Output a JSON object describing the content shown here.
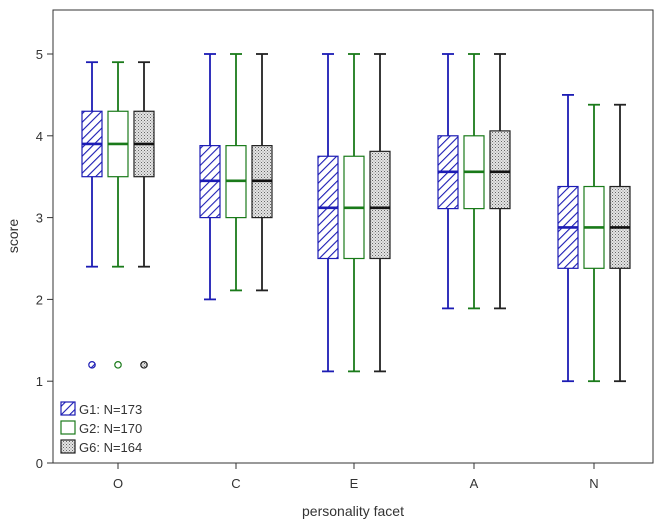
{
  "chart_data": {
    "type": "boxplot",
    "xlabel": "personality facet",
    "ylabel": "score",
    "categories": [
      "O",
      "C",
      "E",
      "A",
      "N"
    ],
    "ylim": [
      0,
      5.5
    ],
    "yticks": [
      0,
      1,
      2,
      3,
      4,
      5
    ],
    "grid": false,
    "legend_position": "bottom-left",
    "series": [
      {
        "name": "G1: N=173",
        "color": "#1c1cb4",
        "fill": "hatch",
        "boxes": [
          {
            "min": 2.4,
            "q1": 3.5,
            "median": 3.9,
            "q3": 4.3,
            "max": 4.9,
            "outliers": [
              1.2
            ]
          },
          {
            "min": 2.0,
            "q1": 3.0,
            "median": 3.45,
            "q3": 3.88,
            "max": 5.0,
            "outliers": []
          },
          {
            "min": 1.12,
            "q1": 2.5,
            "median": 3.12,
            "q3": 3.75,
            "max": 5.0,
            "outliers": []
          },
          {
            "min": 1.89,
            "q1": 3.11,
            "median": 3.56,
            "q3": 4.0,
            "max": 5.0,
            "outliers": []
          },
          {
            "min": 1.0,
            "q1": 2.38,
            "median": 2.88,
            "q3": 3.38,
            "max": 4.5,
            "outliers": []
          }
        ]
      },
      {
        "name": "G2: N=170",
        "color": "#1a7a1a",
        "fill": "white",
        "boxes": [
          {
            "min": 2.4,
            "q1": 3.5,
            "median": 3.9,
            "q3": 4.3,
            "max": 4.9,
            "outliers": [
              1.2
            ]
          },
          {
            "min": 2.11,
            "q1": 3.0,
            "median": 3.45,
            "q3": 3.88,
            "max": 5.0,
            "outliers": []
          },
          {
            "min": 1.12,
            "q1": 2.5,
            "median": 3.12,
            "q3": 3.75,
            "max": 5.0,
            "outliers": []
          },
          {
            "min": 1.89,
            "q1": 3.11,
            "median": 3.56,
            "q3": 4.0,
            "max": 5.0,
            "outliers": []
          },
          {
            "min": 1.0,
            "q1": 2.38,
            "median": 2.88,
            "q3": 3.38,
            "max": 4.38,
            "outliers": []
          }
        ]
      },
      {
        "name": "G6: N=164",
        "color": "#222222",
        "fill": "dots",
        "boxes": [
          {
            "min": 2.4,
            "q1": 3.5,
            "median": 3.9,
            "q3": 4.3,
            "max": 4.9,
            "outliers": [
              1.2
            ]
          },
          {
            "min": 2.11,
            "q1": 3.0,
            "median": 3.45,
            "q3": 3.88,
            "max": 5.0,
            "outliers": []
          },
          {
            "min": 1.12,
            "q1": 2.5,
            "median": 3.12,
            "q3": 3.81,
            "max": 5.0,
            "outliers": []
          },
          {
            "min": 1.89,
            "q1": 3.11,
            "median": 3.56,
            "q3": 4.06,
            "max": 5.0,
            "outliers": []
          },
          {
            "min": 1.0,
            "q1": 2.38,
            "median": 2.88,
            "q3": 3.38,
            "max": 4.38,
            "outliers": []
          }
        ]
      }
    ]
  }
}
